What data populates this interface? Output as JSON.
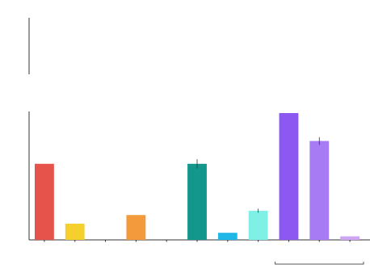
{
  "chart_data": {
    "type": "bar",
    "title": "",
    "subtitle": "",
    "xlabel": "",
    "ylabel": "",
    "ylim_lower": [
      0,
      500
    ],
    "ylim_upper": [
      0,
      0
    ],
    "y_ticks_lower": [],
    "y_ticks_upper": [],
    "broken_axis": true,
    "grid": true,
    "categories": [
      "",
      "",
      "",
      "",
      "",
      "",
      "",
      "",
      "",
      "",
      ""
    ],
    "values": [
      300,
      64,
      0,
      98,
      0,
      300,
      28,
      115,
      700,
      390,
      14
    ],
    "value_labels": [
      "",
      "",
      "",
      "",
      "",
      "",
      "",
      "",
      "",
      "",
      ""
    ],
    "error_bars": [
      0,
      0,
      0,
      0,
      0,
      18,
      0,
      8,
      0,
      15,
      0
    ],
    "colors": [
      "#e5534b",
      "#f5d02d",
      "#ffffff",
      "#f39a3d",
      "#ffffff",
      "#13968c",
      "#1fb7e8",
      "#7ef0e6",
      "#8b58f2",
      "#a77bf4",
      "#cfa6f5"
    ],
    "group_bracket": {
      "label": "",
      "from_index": 8,
      "to_index": 10
    }
  }
}
